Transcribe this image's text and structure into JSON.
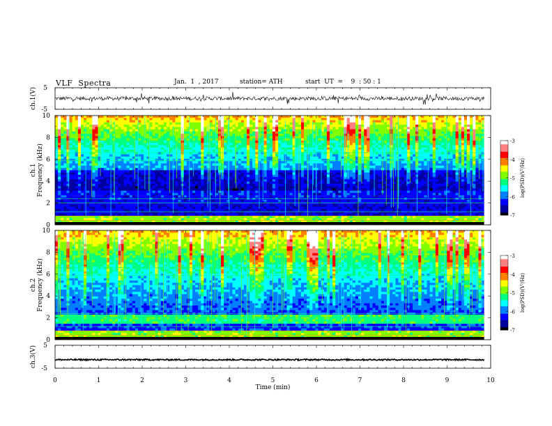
{
  "header": {
    "title": "VLF  Spectra",
    "date": "Jan.  1  , 2017",
    "station": "station= ATH",
    "start_ut": "start  UT  =    9  : 50 : 1"
  },
  "chart_data": [
    {
      "type": "line",
      "panel": "ch1-waveform",
      "ylabel": "ch.1(V)",
      "ylim": [
        -5,
        5
      ],
      "yticks": [
        "5",
        "-5"
      ],
      "x_range_min": [
        0,
        9.85
      ],
      "baseline_value": 0,
      "color": "#000000"
    },
    {
      "type": "heatmap",
      "panel": "ch1-spectrogram",
      "ylabel": "ch.1\nFrequency (kHz)",
      "ylim": [
        0,
        10
      ],
      "yticks": [
        "0",
        "2",
        "4",
        "6",
        "8",
        "10"
      ],
      "colorbar": {
        "label": "log(PSD)(V²/Hz)",
        "ticks": [
          "-3",
          "-4",
          "-5",
          "-6",
          "-7"
        ],
        "range": [
          -7,
          -3
        ]
      }
    },
    {
      "type": "heatmap",
      "panel": "ch2-spectrogram",
      "ylabel": "ch.2\nFrequency (kHz)",
      "ylim": [
        0,
        10
      ],
      "yticks": [
        "0",
        "2",
        "4",
        "6",
        "8",
        "10"
      ],
      "colorbar": {
        "label": "log(PSD)(V²/Hz)",
        "ticks": [
          "-3",
          "-4",
          "-5",
          "-6",
          "-7"
        ],
        "range": [
          -7,
          -3
        ]
      }
    },
    {
      "type": "line",
      "panel": "ch3-waveform",
      "ylabel": "ch.3(V)",
      "ylim": [
        -5,
        5
      ],
      "yticks": [
        "5",
        "-5"
      ],
      "x_range_min": [
        0,
        9.85
      ],
      "baseline_value": -1.3,
      "color": "#000000"
    }
  ],
  "xaxis": {
    "label": "Time  (min)",
    "xlim": [
      0,
      10
    ],
    "ticks": [
      "0",
      "1",
      "2",
      "3",
      "4",
      "5",
      "6",
      "7",
      "8",
      "9",
      "10"
    ]
  },
  "colormap": [
    "#000000",
    "#0000a0",
    "#0000ff",
    "#0080ff",
    "#00ffff",
    "#00ff80",
    "#80ff00",
    "#ffff00",
    "#ff8000",
    "#ff0000",
    "#ff8080",
    "#ffffff"
  ]
}
